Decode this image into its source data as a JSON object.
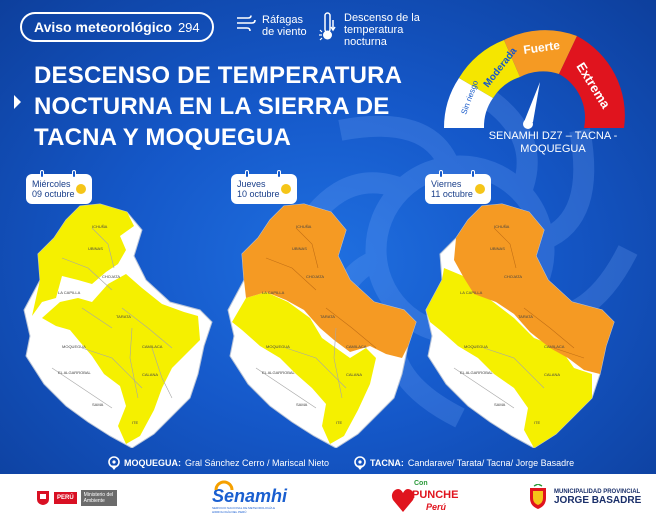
{
  "header": {
    "aviso_title": "Aviso meteorológico",
    "aviso_number": "294",
    "legend_wind": "Ráfagas de viento",
    "legend_temp": "Descenso de la temperatura nocturna"
  },
  "headline": {
    "line1": "DESCENSO DE TEMPERATURA",
    "line2": "NOCTURNA EN LA SIERRA DE",
    "line3": "TACNA Y MOQUEGUA"
  },
  "gauge": {
    "levels": [
      "Sin riesgo",
      "Moderada",
      "Fuerte",
      "Extrema"
    ],
    "source": "SENAMHI DZ7 – TACNA - MOQUEGUA"
  },
  "days": [
    {
      "day": "Miércoles",
      "date": "09 octubre"
    },
    {
      "day": "Jueves",
      "date": "10 octubre"
    },
    {
      "day": "Viernes",
      "date": "11 octubre"
    }
  ],
  "footer_locations": {
    "moquegua_label": "MOQUEGUA:",
    "moquegua_value": "Gral Sánchez Cerro / Mariscal Nieto",
    "tacna_label": "TACNA:",
    "tacna_value": "Candarave/ Tarata/ Tacna/ Jorge Basadre"
  },
  "logos": {
    "peru": "PERÚ",
    "ministerio": "Ministerio del Ambiente",
    "senamhi": "Senamhi",
    "senamhi_sub": "SERVICIO NACIONAL DE METEOROLOGÍA E HIDROLOGÍA DEL PERÚ",
    "con_punche_1": "Con",
    "con_punche_2": "PUNCHE",
    "con_punche_3": "Perú",
    "muni_1": "MUNICIPALIDAD PROVINCIAL",
    "muni_2": "JORGE BASADRE"
  },
  "colors": {
    "moderada": "#f5e600",
    "fuerte": "#f59a23",
    "extrema": "#e0141e",
    "sin_riesgo": "#ffffff",
    "background": "#1558c9"
  }
}
